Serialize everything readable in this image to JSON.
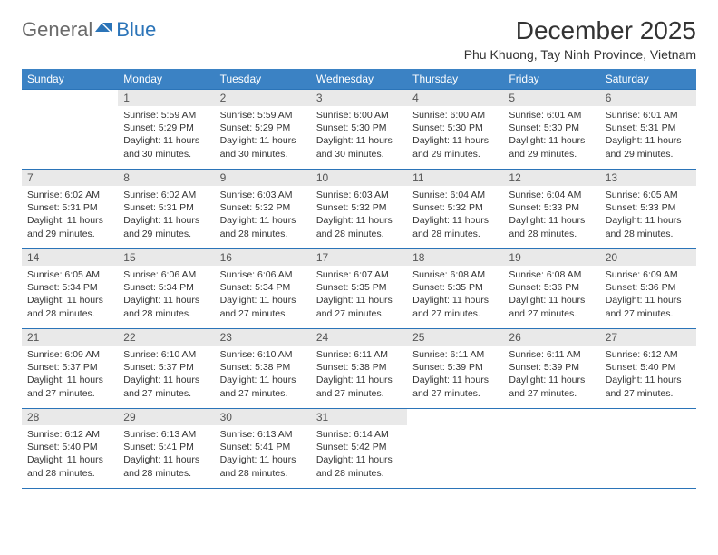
{
  "logo": {
    "part1": "General",
    "part2": "Blue"
  },
  "title": "December 2025",
  "location": "Phu Khuong, Tay Ninh Province, Vietnam",
  "colors": {
    "header_bg": "#3b82c4",
    "border": "#2b74b8",
    "daynum_bg": "#e9e9e9",
    "logo_gray": "#6a6a6a",
    "logo_blue": "#2b74b8"
  },
  "weekdays": [
    "Sunday",
    "Monday",
    "Tuesday",
    "Wednesday",
    "Thursday",
    "Friday",
    "Saturday"
  ],
  "weeks": [
    [
      null,
      {
        "n": "1",
        "sr": "5:59 AM",
        "ss": "5:29 PM",
        "dl": "11 hours and 30 minutes."
      },
      {
        "n": "2",
        "sr": "5:59 AM",
        "ss": "5:29 PM",
        "dl": "11 hours and 30 minutes."
      },
      {
        "n": "3",
        "sr": "6:00 AM",
        "ss": "5:30 PM",
        "dl": "11 hours and 30 minutes."
      },
      {
        "n": "4",
        "sr": "6:00 AM",
        "ss": "5:30 PM",
        "dl": "11 hours and 29 minutes."
      },
      {
        "n": "5",
        "sr": "6:01 AM",
        "ss": "5:30 PM",
        "dl": "11 hours and 29 minutes."
      },
      {
        "n": "6",
        "sr": "6:01 AM",
        "ss": "5:31 PM",
        "dl": "11 hours and 29 minutes."
      }
    ],
    [
      {
        "n": "7",
        "sr": "6:02 AM",
        "ss": "5:31 PM",
        "dl": "11 hours and 29 minutes."
      },
      {
        "n": "8",
        "sr": "6:02 AM",
        "ss": "5:31 PM",
        "dl": "11 hours and 29 minutes."
      },
      {
        "n": "9",
        "sr": "6:03 AM",
        "ss": "5:32 PM",
        "dl": "11 hours and 28 minutes."
      },
      {
        "n": "10",
        "sr": "6:03 AM",
        "ss": "5:32 PM",
        "dl": "11 hours and 28 minutes."
      },
      {
        "n": "11",
        "sr": "6:04 AM",
        "ss": "5:32 PM",
        "dl": "11 hours and 28 minutes."
      },
      {
        "n": "12",
        "sr": "6:04 AM",
        "ss": "5:33 PM",
        "dl": "11 hours and 28 minutes."
      },
      {
        "n": "13",
        "sr": "6:05 AM",
        "ss": "5:33 PM",
        "dl": "11 hours and 28 minutes."
      }
    ],
    [
      {
        "n": "14",
        "sr": "6:05 AM",
        "ss": "5:34 PM",
        "dl": "11 hours and 28 minutes."
      },
      {
        "n": "15",
        "sr": "6:06 AM",
        "ss": "5:34 PM",
        "dl": "11 hours and 28 minutes."
      },
      {
        "n": "16",
        "sr": "6:06 AM",
        "ss": "5:34 PM",
        "dl": "11 hours and 27 minutes."
      },
      {
        "n": "17",
        "sr": "6:07 AM",
        "ss": "5:35 PM",
        "dl": "11 hours and 27 minutes."
      },
      {
        "n": "18",
        "sr": "6:08 AM",
        "ss": "5:35 PM",
        "dl": "11 hours and 27 minutes."
      },
      {
        "n": "19",
        "sr": "6:08 AM",
        "ss": "5:36 PM",
        "dl": "11 hours and 27 minutes."
      },
      {
        "n": "20",
        "sr": "6:09 AM",
        "ss": "5:36 PM",
        "dl": "11 hours and 27 minutes."
      }
    ],
    [
      {
        "n": "21",
        "sr": "6:09 AM",
        "ss": "5:37 PM",
        "dl": "11 hours and 27 minutes."
      },
      {
        "n": "22",
        "sr": "6:10 AM",
        "ss": "5:37 PM",
        "dl": "11 hours and 27 minutes."
      },
      {
        "n": "23",
        "sr": "6:10 AM",
        "ss": "5:38 PM",
        "dl": "11 hours and 27 minutes."
      },
      {
        "n": "24",
        "sr": "6:11 AM",
        "ss": "5:38 PM",
        "dl": "11 hours and 27 minutes."
      },
      {
        "n": "25",
        "sr": "6:11 AM",
        "ss": "5:39 PM",
        "dl": "11 hours and 27 minutes."
      },
      {
        "n": "26",
        "sr": "6:11 AM",
        "ss": "5:39 PM",
        "dl": "11 hours and 27 minutes."
      },
      {
        "n": "27",
        "sr": "6:12 AM",
        "ss": "5:40 PM",
        "dl": "11 hours and 27 minutes."
      }
    ],
    [
      {
        "n": "28",
        "sr": "6:12 AM",
        "ss": "5:40 PM",
        "dl": "11 hours and 28 minutes."
      },
      {
        "n": "29",
        "sr": "6:13 AM",
        "ss": "5:41 PM",
        "dl": "11 hours and 28 minutes."
      },
      {
        "n": "30",
        "sr": "6:13 AM",
        "ss": "5:41 PM",
        "dl": "11 hours and 28 minutes."
      },
      {
        "n": "31",
        "sr": "6:14 AM",
        "ss": "5:42 PM",
        "dl": "11 hours and 28 minutes."
      },
      null,
      null,
      null
    ]
  ],
  "labels": {
    "sunrise": "Sunrise:",
    "sunset": "Sunset:",
    "daylight": "Daylight:"
  }
}
